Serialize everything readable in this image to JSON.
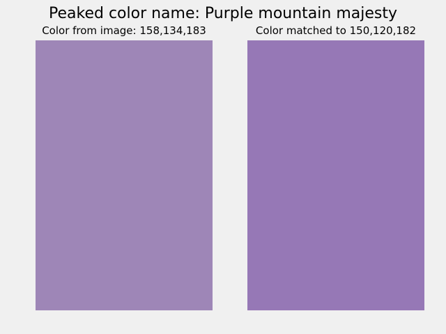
{
  "title": "Peaked color name: Purple mountain majesty",
  "left_panel": {
    "label": "Color from image: 158,134,183",
    "color": "#9e86b7"
  },
  "right_panel": {
    "label": "Color matched to 150,120,182",
    "color": "#9678b6"
  },
  "background_color": "#f0f0f0"
}
